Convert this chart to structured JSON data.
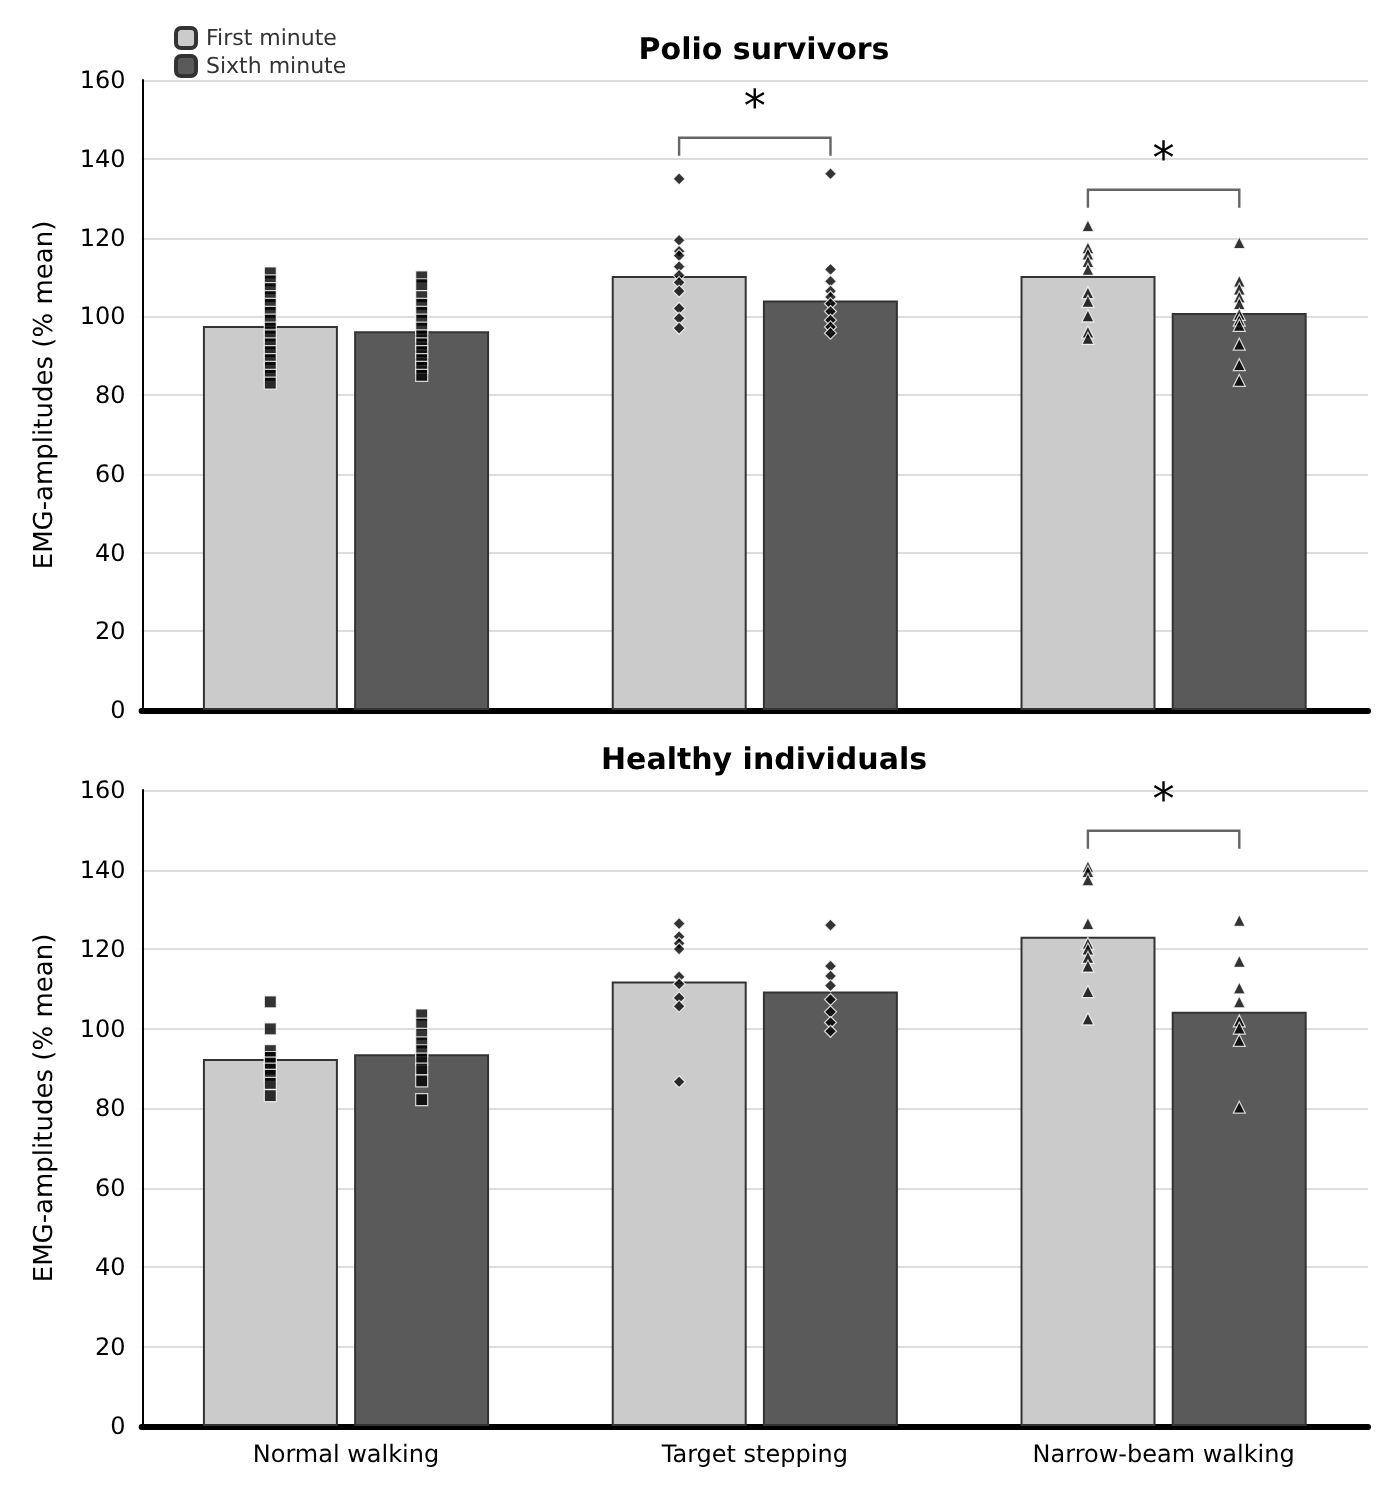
{
  "chart_data": [
    {
      "type": "bar",
      "title": "Polio survivors",
      "ylabel": "EMG-amplitudes (% mean)",
      "categories": [
        "Normal walking",
        "Target stepping",
        "Narrow-beam walking"
      ],
      "ylim": [
        0,
        160
      ],
      "yticks": [
        0,
        20,
        40,
        60,
        80,
        100,
        120,
        140,
        160
      ],
      "grid": "y",
      "legend": "top left",
      "tick_labels": "y",
      "series": [
        {
          "name": "First minute",
          "color": "#cbcbcb",
          "values": [
            97.5,
            110.2,
            110.2
          ]
        },
        {
          "name": "Sixth minute",
          "color": "#5a5a5a",
          "values": [
            96.2,
            104,
            100.8
          ]
        },
        {
          "type": "scatter",
          "marker": "square",
          "color": "#000000",
          "x": [
            "Normal walking",
            "Normal walking",
            "Normal walking",
            "Normal walking",
            "Normal walking",
            "Normal walking",
            "Normal walking",
            "Normal walking",
            "Normal walking",
            "Normal walking",
            "Normal walking",
            "Normal walking",
            "Normal walking",
            "Normal walking",
            "Normal walking"
          ],
          "values": [
            111,
            109,
            107,
            105,
            103,
            101,
            99,
            97,
            95,
            93,
            91,
            89,
            87,
            85,
            83
          ]
        },
        {
          "type": "scatter",
          "marker": "square",
          "color": "#000000",
          "x": [
            "Normal walking",
            "Normal walking",
            "Normal walking",
            "Normal walking",
            "Normal walking",
            "Normal walking",
            "Normal walking",
            "Normal walking",
            "Normal walking",
            "Normal walking",
            "Normal walking",
            "Normal walking",
            "Normal walking"
          ],
          "values": [
            110,
            108,
            105,
            103,
            101,
            99,
            97,
            95,
            93,
            91,
            89,
            87,
            85
          ]
        },
        {
          "type": "scatter",
          "marker": "diamond",
          "color": "#000000",
          "x": [
            "Target stepping",
            "Target stepping",
            "Target stepping",
            "Target stepping",
            "Target stepping",
            "Target stepping",
            "Target stepping",
            "Target stepping",
            "Target stepping",
            "Target stepping",
            "Target stepping"
          ],
          "values": [
            134.9,
            119.3,
            116.5,
            115.4,
            112.6,
            110.4,
            108.6,
            106.4,
            102,
            99.5,
            97
          ]
        },
        {
          "type": "scatter",
          "marker": "diamond",
          "color": "#000000",
          "x": [
            "Target stepping",
            "Target stepping",
            "Target stepping",
            "Target stepping",
            "Target stepping",
            "Target stepping",
            "Target stepping",
            "Target stepping",
            "Target stepping",
            "Target stepping"
          ],
          "values": [
            136.2,
            111.9,
            108.9,
            106.4,
            104.9,
            103.2,
            101.2,
            99,
            97.3,
            95.7
          ]
        },
        {
          "type": "scatter",
          "marker": "triangle",
          "color": "#000000",
          "x": [
            "Narrow-beam walking",
            "Narrow-beam walking",
            "Narrow-beam walking",
            "Narrow-beam walking",
            "Narrow-beam walking",
            "Narrow-beam walking",
            "Narrow-beam walking",
            "Narrow-beam walking",
            "Narrow-beam walking",
            "Narrow-beam walking"
          ],
          "values": [
            123,
            117.4,
            115.8,
            113.9,
            111.9,
            106,
            103.8,
            100.1,
            96,
            94.4
          ]
        },
        {
          "type": "scatter",
          "marker": "triangle",
          "color": "#000000",
          "x": [
            "Narrow-beam walking",
            "Narrow-beam walking",
            "Narrow-beam walking",
            "Narrow-beam walking",
            "Narrow-beam walking",
            "Narrow-beam walking",
            "Narrow-beam walking",
            "Narrow-beam walking",
            "Narrow-beam walking",
            "Narrow-beam walking",
            "Narrow-beam walking"
          ],
          "values": [
            118.7,
            108.9,
            106.9,
            104.9,
            103.2,
            100.5,
            99,
            97.7,
            92.9,
            87.7,
            83.7
          ]
        }
      ],
      "annotations": [
        "*",
        "*"
      ]
    },
    {
      "type": "bar",
      "title": "Healthy individuals",
      "ylabel": "EMG-amplitudes (% mean)",
      "categories": [
        "Normal walking",
        "Target stepping",
        "Narrow-beam walking"
      ],
      "ylim": [
        0,
        160
      ],
      "yticks": [
        0,
        20,
        40,
        60,
        80,
        100,
        120,
        140,
        160
      ],
      "grid": "y",
      "series": [
        {
          "color": "#cbcbcb",
          "values": [
            92.3,
            111.8,
            123.1
          ]
        },
        {
          "color": "#5a5a5a",
          "values": [
            93.5,
            109.3,
            104.2
          ]
        },
        {
          "type": "scatter",
          "marker": "square",
          "color": "#000000",
          "x": [
            "Normal walking",
            "Normal walking",
            "Normal walking",
            "Normal walking",
            "Normal walking",
            "Normal walking",
            "Normal walking",
            "Normal walking",
            "Normal walking"
          ],
          "values": [
            106.7,
            99.9,
            94.4,
            92.7,
            91.3,
            89.8,
            88.2,
            86.2,
            83.1
          ]
        },
        {
          "type": "scatter",
          "marker": "square",
          "color": "#000000",
          "x": [
            "Normal walking",
            "Normal walking",
            "Normal walking",
            "Normal walking",
            "Normal walking",
            "Normal walking",
            "Normal walking",
            "Normal walking",
            "Normal walking"
          ],
          "values": [
            103.4,
            101.1,
            98.5,
            96.4,
            94.4,
            92.3,
            89.8,
            86.8,
            82.1
          ]
        },
        {
          "type": "scatter",
          "marker": "diamond",
          "color": "#000000",
          "x": [
            "Target stepping",
            "Target stepping",
            "Target stepping",
            "Target stepping",
            "Target stepping",
            "Target stepping",
            "Target stepping",
            "Target stepping",
            "Target stepping"
          ],
          "values": [
            126.4,
            123.1,
            121.4,
            120,
            113,
            111.2,
            107.7,
            105.6,
            86.6
          ]
        },
        {
          "type": "scatter",
          "marker": "diamond",
          "color": "#000000",
          "x": [
            "Target stepping",
            "Target stepping",
            "Target stepping",
            "Target stepping",
            "Target stepping",
            "Target stepping",
            "Target stepping",
            "Target stepping"
          ],
          "values": [
            126,
            115.7,
            113.2,
            110.8,
            107.3,
            104.2,
            101.5,
            99.3
          ]
        },
        {
          "type": "scatter",
          "marker": "triangle",
          "color": "#000000",
          "x": [
            "Narrow-beam walking",
            "Narrow-beam walking",
            "Narrow-beam walking",
            "Narrow-beam walking",
            "Narrow-beam walking",
            "Narrow-beam walking",
            "Narrow-beam walking",
            "Narrow-beam walking",
            "Narrow-beam walking",
            "Narrow-beam walking"
          ],
          "values": [
            140.7,
            139.5,
            137.4,
            126.4,
            121.4,
            120,
            117.9,
            115.7,
            109.3,
            102.4
          ]
        },
        {
          "type": "scatter",
          "marker": "triangle",
          "color": "#000000",
          "x": [
            "Narrow-beam walking",
            "Narrow-beam walking",
            "Narrow-beam walking",
            "Narrow-beam walking",
            "Narrow-beam walking",
            "Narrow-beam walking",
            "Narrow-beam walking",
            "Narrow-beam walking"
          ],
          "values": [
            127.2,
            116.9,
            110.2,
            106.7,
            101.9,
            100.1,
            97,
            80.2
          ]
        }
      ],
      "annotations": [
        "*"
      ]
    }
  ]
}
